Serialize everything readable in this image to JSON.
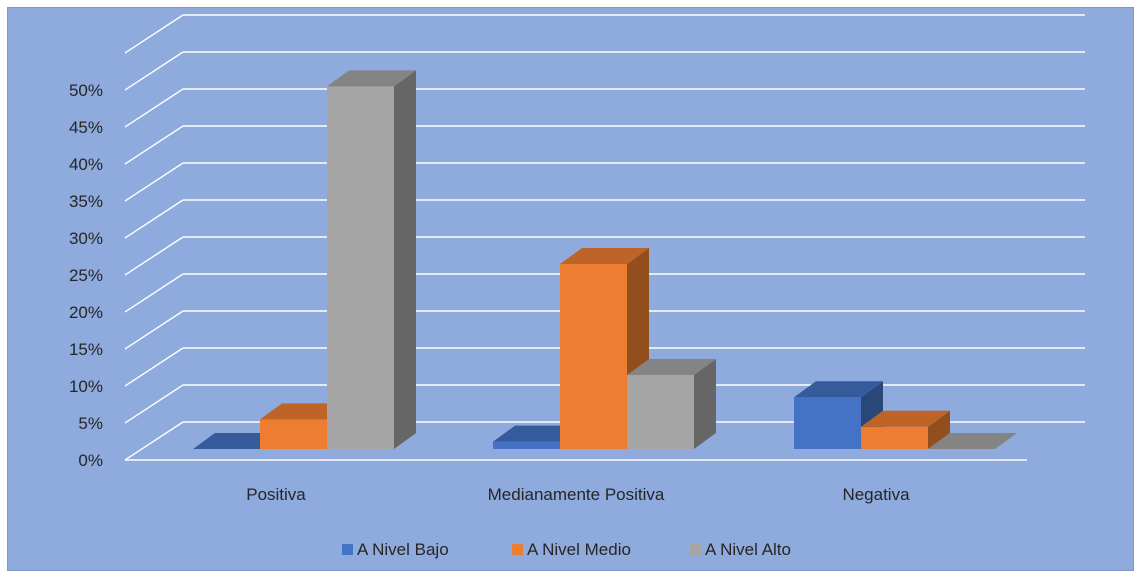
{
  "chart_data": {
    "type": "bar",
    "three_d": true,
    "categories": [
      "Positiva",
      "Medianamente Positiva",
      "Negativa"
    ],
    "series": [
      {
        "name": "A Nivel Bajo",
        "values": [
          0,
          1,
          7
        ],
        "color": "#4472c4"
      },
      {
        "name": "A Nivel Medio",
        "values": [
          4,
          25,
          3
        ],
        "color": "#ed7d31"
      },
      {
        "name": "A Nivel Alto",
        "values": [
          49,
          10,
          0
        ],
        "color": "#a5a5a5"
      }
    ],
    "y_ticks": [
      "0%",
      "5%",
      "10%",
      "15%",
      "20%",
      "25%",
      "30%",
      "35%",
      "40%",
      "45%",
      "50%"
    ],
    "ylim": [
      0,
      50
    ],
    "grid": true,
    "legend": "bottom",
    "background": "#8faadc"
  }
}
